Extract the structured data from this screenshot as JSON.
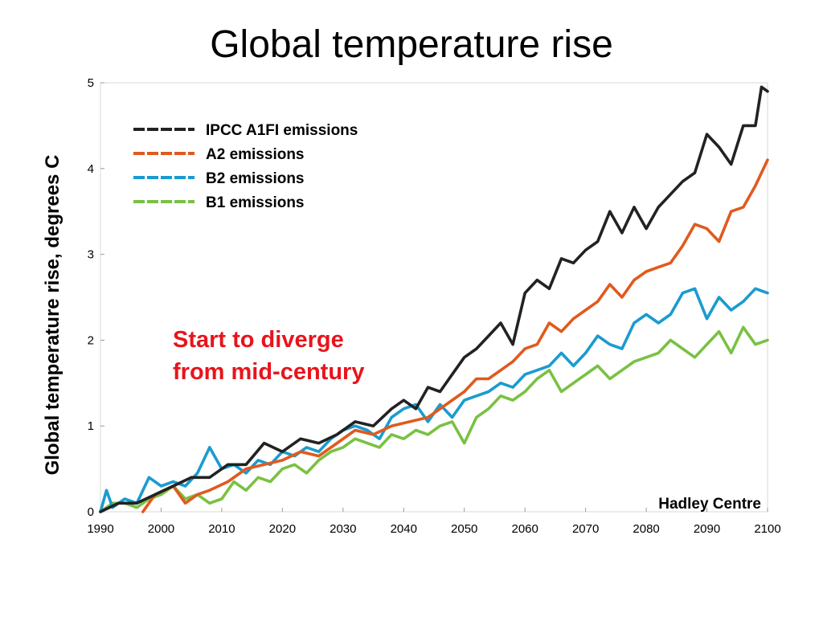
{
  "chart_data": {
    "type": "line",
    "title": "Global temperature rise",
    "xlabel": "",
    "ylabel": "Global temperature rise, degrees C",
    "xlim": [
      1990,
      2100
    ],
    "ylim": [
      0,
      5
    ],
    "x_ticks": [
      "1990",
      "2000",
      "2010",
      "2020",
      "2030",
      "2040",
      "2050",
      "2060",
      "2070",
      "2080",
      "2090",
      "2100"
    ],
    "y_ticks": [
      "0",
      "1",
      "2",
      "3",
      "4",
      "5"
    ],
    "grid": false,
    "legend_position": "top-left",
    "series": [
      {
        "name": "IPCC A1FI emissions",
        "color": "#222222",
        "points": [
          [
            1990,
            0.0
          ],
          [
            1993,
            0.1
          ],
          [
            1996,
            0.1
          ],
          [
            1999,
            0.2
          ],
          [
            2002,
            0.3
          ],
          [
            2005,
            0.4
          ],
          [
            2008,
            0.4
          ],
          [
            2011,
            0.55
          ],
          [
            2014,
            0.55
          ],
          [
            2017,
            0.8
          ],
          [
            2020,
            0.7
          ],
          [
            2023,
            0.85
          ],
          [
            2026,
            0.8
          ],
          [
            2029,
            0.9
          ],
          [
            2032,
            1.05
          ],
          [
            2035,
            1.0
          ],
          [
            2038,
            1.2
          ],
          [
            2040,
            1.3
          ],
          [
            2042,
            1.2
          ],
          [
            2044,
            1.45
          ],
          [
            2046,
            1.4
          ],
          [
            2048,
            1.6
          ],
          [
            2050,
            1.8
          ],
          [
            2052,
            1.9
          ],
          [
            2054,
            2.05
          ],
          [
            2056,
            2.2
          ],
          [
            2058,
            1.95
          ],
          [
            2060,
            2.55
          ],
          [
            2062,
            2.7
          ],
          [
            2064,
            2.6
          ],
          [
            2066,
            2.95
          ],
          [
            2068,
            2.9
          ],
          [
            2070,
            3.05
          ],
          [
            2072,
            3.15
          ],
          [
            2074,
            3.5
          ],
          [
            2076,
            3.25
          ],
          [
            2078,
            3.55
          ],
          [
            2080,
            3.3
          ],
          [
            2082,
            3.55
          ],
          [
            2084,
            3.7
          ],
          [
            2086,
            3.85
          ],
          [
            2088,
            3.95
          ],
          [
            2090,
            4.4
          ],
          [
            2092,
            4.25
          ],
          [
            2094,
            4.05
          ],
          [
            2096,
            4.5
          ],
          [
            2098,
            4.5
          ],
          [
            2099,
            4.95
          ],
          [
            2100,
            4.9
          ]
        ]
      },
      {
        "name": "A2 emissions",
        "color": "#e05a1e",
        "points": [
          [
            1997,
            0.0
          ],
          [
            1999,
            0.2
          ],
          [
            2002,
            0.3
          ],
          [
            2004,
            0.1
          ],
          [
            2006,
            0.2
          ],
          [
            2008,
            0.25
          ],
          [
            2011,
            0.35
          ],
          [
            2014,
            0.5
          ],
          [
            2017,
            0.55
          ],
          [
            2020,
            0.6
          ],
          [
            2023,
            0.7
          ],
          [
            2026,
            0.65
          ],
          [
            2029,
            0.8
          ],
          [
            2032,
            0.95
          ],
          [
            2035,
            0.9
          ],
          [
            2038,
            1.0
          ],
          [
            2041,
            1.05
          ],
          [
            2044,
            1.1
          ],
          [
            2047,
            1.25
          ],
          [
            2050,
            1.4
          ],
          [
            2052,
            1.55
          ],
          [
            2054,
            1.55
          ],
          [
            2056,
            1.65
          ],
          [
            2058,
            1.75
          ],
          [
            2060,
            1.9
          ],
          [
            2062,
            1.95
          ],
          [
            2064,
            2.2
          ],
          [
            2066,
            2.1
          ],
          [
            2068,
            2.25
          ],
          [
            2070,
            2.35
          ],
          [
            2072,
            2.45
          ],
          [
            2074,
            2.65
          ],
          [
            2076,
            2.5
          ],
          [
            2078,
            2.7
          ],
          [
            2080,
            2.8
          ],
          [
            2082,
            2.85
          ],
          [
            2084,
            2.9
          ],
          [
            2086,
            3.1
          ],
          [
            2088,
            3.35
          ],
          [
            2090,
            3.3
          ],
          [
            2092,
            3.15
          ],
          [
            2094,
            3.5
          ],
          [
            2096,
            3.55
          ],
          [
            2098,
            3.8
          ],
          [
            2100,
            4.1
          ]
        ]
      },
      {
        "name": "B2 emissions",
        "color": "#1a9bd0",
        "points": [
          [
            1990,
            0.0
          ],
          [
            1991,
            0.25
          ],
          [
            1992,
            0.05
          ],
          [
            1994,
            0.15
          ],
          [
            1996,
            0.1
          ],
          [
            1998,
            0.4
          ],
          [
            2000,
            0.3
          ],
          [
            2002,
            0.35
          ],
          [
            2004,
            0.3
          ],
          [
            2006,
            0.45
          ],
          [
            2008,
            0.75
          ],
          [
            2010,
            0.5
          ],
          [
            2012,
            0.55
          ],
          [
            2014,
            0.45
          ],
          [
            2016,
            0.6
          ],
          [
            2018,
            0.55
          ],
          [
            2020,
            0.7
          ],
          [
            2022,
            0.65
          ],
          [
            2024,
            0.75
          ],
          [
            2026,
            0.7
          ],
          [
            2028,
            0.85
          ],
          [
            2030,
            0.95
          ],
          [
            2032,
            1.0
          ],
          [
            2034,
            0.95
          ],
          [
            2036,
            0.85
          ],
          [
            2038,
            1.1
          ],
          [
            2040,
            1.2
          ],
          [
            2042,
            1.25
          ],
          [
            2044,
            1.05
          ],
          [
            2046,
            1.25
          ],
          [
            2048,
            1.1
          ],
          [
            2050,
            1.3
          ],
          [
            2052,
            1.35
          ],
          [
            2054,
            1.4
          ],
          [
            2056,
            1.5
          ],
          [
            2058,
            1.45
          ],
          [
            2060,
            1.6
          ],
          [
            2062,
            1.65
          ],
          [
            2064,
            1.7
          ],
          [
            2066,
            1.85
          ],
          [
            2068,
            1.7
          ],
          [
            2070,
            1.85
          ],
          [
            2072,
            2.05
          ],
          [
            2074,
            1.95
          ],
          [
            2076,
            1.9
          ],
          [
            2078,
            2.2
          ],
          [
            2080,
            2.3
          ],
          [
            2082,
            2.2
          ],
          [
            2084,
            2.3
          ],
          [
            2086,
            2.55
          ],
          [
            2088,
            2.6
          ],
          [
            2090,
            2.25
          ],
          [
            2092,
            2.5
          ],
          [
            2094,
            2.35
          ],
          [
            2096,
            2.45
          ],
          [
            2098,
            2.6
          ],
          [
            2100,
            2.55
          ]
        ]
      },
      {
        "name": "B1 emissions",
        "color": "#79c143",
        "points": [
          [
            1990,
            0.0
          ],
          [
            1992,
            0.1
          ],
          [
            1994,
            0.1
          ],
          [
            1996,
            0.05
          ],
          [
            1998,
            0.15
          ],
          [
            2000,
            0.2
          ],
          [
            2002,
            0.3
          ],
          [
            2004,
            0.15
          ],
          [
            2006,
            0.2
          ],
          [
            2008,
            0.1
          ],
          [
            2010,
            0.15
          ],
          [
            2012,
            0.35
          ],
          [
            2014,
            0.25
          ],
          [
            2016,
            0.4
          ],
          [
            2018,
            0.35
          ],
          [
            2020,
            0.5
          ],
          [
            2022,
            0.55
          ],
          [
            2024,
            0.45
          ],
          [
            2026,
            0.6
          ],
          [
            2028,
            0.7
          ],
          [
            2030,
            0.75
          ],
          [
            2032,
            0.85
          ],
          [
            2034,
            0.8
          ],
          [
            2036,
            0.75
          ],
          [
            2038,
            0.9
          ],
          [
            2040,
            0.85
          ],
          [
            2042,
            0.95
          ],
          [
            2044,
            0.9
          ],
          [
            2046,
            1.0
          ],
          [
            2048,
            1.05
          ],
          [
            2050,
            0.8
          ],
          [
            2052,
            1.1
          ],
          [
            2054,
            1.2
          ],
          [
            2056,
            1.35
          ],
          [
            2058,
            1.3
          ],
          [
            2060,
            1.4
          ],
          [
            2062,
            1.55
          ],
          [
            2064,
            1.65
          ],
          [
            2066,
            1.4
          ],
          [
            2068,
            1.5
          ],
          [
            2070,
            1.6
          ],
          [
            2072,
            1.7
          ],
          [
            2074,
            1.55
          ],
          [
            2076,
            1.65
          ],
          [
            2078,
            1.75
          ],
          [
            2080,
            1.8
          ],
          [
            2082,
            1.85
          ],
          [
            2084,
            2.0
          ],
          [
            2086,
            1.9
          ],
          [
            2088,
            1.8
          ],
          [
            2090,
            1.95
          ],
          [
            2092,
            2.1
          ],
          [
            2094,
            1.85
          ],
          [
            2096,
            2.15
          ],
          [
            2098,
            1.95
          ],
          [
            2100,
            2.0
          ]
        ]
      }
    ],
    "annotations": [
      "Start to diverge",
      "from mid-century"
    ],
    "credit": "Hadley Centre"
  }
}
